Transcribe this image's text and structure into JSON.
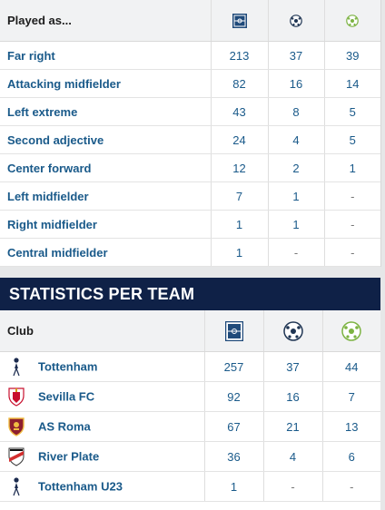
{
  "positions": {
    "header_label": "Played as...",
    "rows": [
      {
        "name": "Far right",
        "apps": "213",
        "goals": "37",
        "assists": "39"
      },
      {
        "name": "Attacking midfielder",
        "apps": "82",
        "goals": "16",
        "assists": "14"
      },
      {
        "name": "Left extreme",
        "apps": "43",
        "goals": "8",
        "assists": "5"
      },
      {
        "name": "Second adjective",
        "apps": "24",
        "goals": "4",
        "assists": "5"
      },
      {
        "name": "Center forward",
        "apps": "12",
        "goals": "2",
        "assists": "1"
      },
      {
        "name": "Left midfielder",
        "apps": "7",
        "goals": "1",
        "assists": "-"
      },
      {
        "name": "Right midfielder",
        "apps": "1",
        "goals": "1",
        "assists": "-"
      },
      {
        "name": "Central midfielder",
        "apps": "1",
        "goals": "-",
        "assists": "-"
      }
    ]
  },
  "teams": {
    "title": "STATISTICS PER TEAM",
    "header_label": "Club",
    "rows": [
      {
        "club": "Tottenham",
        "apps": "257",
        "goals": "37",
        "assists": "44",
        "crest": "tottenham-crest-icon"
      },
      {
        "club": "Sevilla FC",
        "apps": "92",
        "goals": "16",
        "assists": "7",
        "crest": "sevilla-crest-icon"
      },
      {
        "club": "AS Roma",
        "apps": "67",
        "goals": "21",
        "assists": "13",
        "crest": "roma-crest-icon"
      },
      {
        "club": "River Plate",
        "apps": "36",
        "goals": "4",
        "assists": "6",
        "crest": "river-plate-crest-icon"
      },
      {
        "club": "Tottenham U23",
        "apps": "1",
        "goals": "-",
        "assists": "-",
        "crest": "tottenham-crest-icon"
      }
    ]
  },
  "icons": {
    "appearances": "pitch-icon",
    "goals": "ball-icon",
    "assists": "assist-ball-icon"
  },
  "colors": {
    "link": "#1a5a8a",
    "title_bar": "#0f2147",
    "pitch": "#1f4a7a",
    "assist": "#7cb342"
  }
}
